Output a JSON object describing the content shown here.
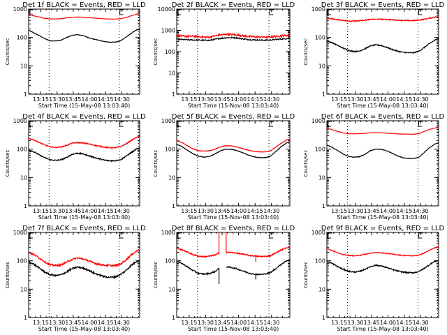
{
  "figure": {
    "background": "#ffffff",
    "series_colors": {
      "events": "#000000",
      "lld": "#ff0000"
    }
  },
  "chart_data": [
    {
      "type": "line",
      "panel": 1,
      "title": "Det 1f BLACK = Events, RED = LLD",
      "xlabel": "Start Time (15-May-08 13:03:40)",
      "ylabel": "Counts/sec",
      "xlim_min": [
        0,
        103
      ],
      "yscale": "log",
      "ylim": [
        1,
        1000
      ],
      "xticks": [
        "13:15",
        "13:30",
        "13:45",
        "14:00",
        "14:15",
        "14:30"
      ],
      "yticks": [
        "1",
        "10",
        "100",
        "1000"
      ],
      "vlines_min": [
        19,
        84,
        102
      ],
      "markers": [
        {
          "label": "E",
          "x_min": 0
        },
        {
          "label": "E",
          "x_min": 84
        }
      ],
      "x_min": [
        0,
        5,
        10,
        15,
        20,
        25,
        30,
        35,
        40,
        45,
        50,
        55,
        60,
        65,
        70,
        75,
        80,
        85,
        90,
        95,
        100,
        103
      ],
      "series": [
        {
          "name": "Events",
          "noise": 0.02,
          "values": [
            180,
            145,
            115,
            90,
            77,
            75,
            80,
            98,
            118,
            125,
            118,
            100,
            88,
            80,
            72,
            68,
            68,
            75,
            100,
            140,
            185,
            190
          ]
        },
        {
          "name": "LLD",
          "noise": 0.01,
          "values": [
            650,
            580,
            520,
            470,
            450,
            450,
            460,
            490,
            510,
            525,
            515,
            500,
            485,
            470,
            455,
            445,
            445,
            455,
            500,
            580,
            660,
            690
          ]
        }
      ]
    },
    {
      "type": "line",
      "panel": 2,
      "title": "Det 2f BLACK = Events, RED = LLD",
      "xlabel": "Start Time (15-Nov-08 13:03:40)",
      "ylabel": "Counts/sec",
      "xlim_min": [
        0,
        103
      ],
      "yscale": "log",
      "ylim": [
        1,
        10000
      ],
      "xticks": [
        "13:15",
        "13:30",
        "13:45",
        "14:00",
        "14:15",
        "14:30"
      ],
      "yticks": [
        "1",
        "10",
        "100",
        "1000",
        "10000"
      ],
      "vlines_min": [
        19,
        84,
        102
      ],
      "markers": [
        {
          "label": "E",
          "x_min": 0
        },
        {
          "label": "E",
          "x_min": 84
        }
      ],
      "x_min": [
        0,
        5,
        10,
        15,
        20,
        25,
        30,
        35,
        40,
        45,
        50,
        55,
        60,
        65,
        70,
        75,
        80,
        85,
        90,
        95,
        100,
        103
      ],
      "series": [
        {
          "name": "Events",
          "noise": 0.06,
          "values": [
            380,
            370,
            360,
            355,
            350,
            340,
            340,
            380,
            420,
            450,
            460,
            440,
            400,
            370,
            360,
            350,
            345,
            350,
            370,
            390,
            410,
            420
          ]
        },
        {
          "name": "LLD",
          "noise": 0.1,
          "values": [
            560,
            540,
            520,
            530,
            500,
            480,
            480,
            560,
            620,
            650,
            640,
            600,
            560,
            520,
            500,
            490,
            480,
            490,
            520,
            550,
            580,
            590
          ]
        }
      ]
    },
    {
      "type": "line",
      "panel": 3,
      "title": "Det 3f BLACK = Events, RED = LLD",
      "xlabel": "Start Time (15-May-08 13:03:40)",
      "ylabel": "Counts/sec",
      "xlim_min": [
        0,
        103
      ],
      "yscale": "log",
      "ylim": [
        1,
        1000
      ],
      "xticks": [
        "13:15",
        "13:30",
        "13:45",
        "14:00",
        "14:15",
        "14:30"
      ],
      "yticks": [
        "1",
        "10",
        "100",
        "1000"
      ],
      "vlines_min": [
        19,
        84,
        102
      ],
      "markers": [
        {
          "label": "E",
          "x_min": 0
        },
        {
          "label": "E",
          "x_min": 84
        }
      ],
      "x_min": [
        0,
        5,
        10,
        15,
        20,
        25,
        30,
        35,
        40,
        45,
        50,
        55,
        60,
        65,
        70,
        75,
        80,
        85,
        90,
        95,
        100,
        103
      ],
      "series": [
        {
          "name": "Events",
          "noise": 0.04,
          "values": [
            75,
            65,
            52,
            42,
            35,
            32,
            33,
            40,
            50,
            55,
            52,
            45,
            38,
            33,
            30,
            29,
            29,
            33,
            45,
            62,
            82,
            88
          ]
        },
        {
          "name": "LLD",
          "noise": 0.04,
          "values": [
            480,
            450,
            420,
            400,
            380,
            380,
            390,
            410,
            430,
            440,
            440,
            430,
            420,
            410,
            400,
            395,
            395,
            410,
            440,
            480,
            520,
            540
          ]
        }
      ]
    },
    {
      "type": "line",
      "panel": 4,
      "title": "Det 4f BLACK = Events, RED = LLD",
      "xlabel": "Start Time (15-May-08 13:03:40)",
      "ylabel": "Counts/sec",
      "xlim_min": [
        0,
        103
      ],
      "yscale": "log",
      "ylim": [
        1,
        1000
      ],
      "xticks": [
        "13:15",
        "13:30",
        "13:45",
        "14:00",
        "14:15",
        "14:30"
      ],
      "yticks": [
        "1",
        "10",
        "100",
        "1000"
      ],
      "vlines_min": [
        19,
        84,
        102
      ],
      "markers": [
        {
          "label": "E",
          "x_min": 0
        },
        {
          "label": "E",
          "x_min": 84
        }
      ],
      "x_min": [
        0,
        5,
        10,
        15,
        20,
        25,
        30,
        35,
        40,
        45,
        50,
        55,
        60,
        65,
        70,
        75,
        80,
        85,
        90,
        95,
        100,
        103
      ],
      "series": [
        {
          "name": "Events",
          "noise": 0.05,
          "values": [
            95,
            80,
            62,
            50,
            42,
            40,
            42,
            50,
            65,
            72,
            68,
            60,
            52,
            46,
            41,
            39,
            39,
            42,
            55,
            75,
            100,
            110
          ]
        },
        {
          "name": "LLD",
          "noise": 0.04,
          "values": [
            240,
            210,
            170,
            140,
            120,
            115,
            118,
            135,
            160,
            170,
            165,
            155,
            140,
            128,
            118,
            112,
            112,
            120,
            150,
            200,
            260,
            280
          ]
        }
      ]
    },
    {
      "type": "line",
      "panel": 5,
      "title": "Det 5f BLACK = Events, RED = LLD",
      "xlabel": "Start Time (15-Nov-08 13:03:40)",
      "ylabel": "Counts/sec",
      "xlim_min": [
        0,
        103
      ],
      "yscale": "log",
      "ylim": [
        1,
        1000
      ],
      "xticks": [
        "13:15",
        "13:30",
        "13:45",
        "14:00",
        "14:15",
        "14:30"
      ],
      "yticks": [
        "1",
        "10",
        "100",
        "1000"
      ],
      "vlines_min": [
        19,
        84,
        102
      ],
      "markers": [
        {
          "label": "E",
          "x_min": 0
        },
        {
          "label": "E",
          "x_min": 84
        }
      ],
      "x_min": [
        0,
        5,
        10,
        15,
        20,
        25,
        30,
        35,
        40,
        45,
        50,
        55,
        60,
        65,
        70,
        75,
        80,
        85,
        90,
        95,
        100,
        103
      ],
      "series": [
        {
          "name": "Events",
          "noise": 0.02,
          "values": [
            150,
            120,
            90,
            68,
            56,
            52,
            55,
            68,
            88,
            100,
            98,
            88,
            75,
            62,
            54,
            50,
            50,
            55,
            80,
            120,
            165,
            180
          ]
        },
        {
          "name": "LLD",
          "noise": 0.02,
          "values": [
            200,
            170,
            130,
            100,
            88,
            85,
            88,
            100,
            120,
            132,
            130,
            118,
            105,
            92,
            84,
            80,
            80,
            86,
            115,
            160,
            210,
            225
          ]
        }
      ]
    },
    {
      "type": "line",
      "panel": 6,
      "title": "Det 6f BLACK = Events, RED = LLD",
      "xlabel": "Start Time (15-May-08 13:03:40)",
      "ylabel": "Counts/sec",
      "xlim_min": [
        0,
        103
      ],
      "yscale": "log",
      "ylim": [
        1,
        1000
      ],
      "xticks": [
        "13:15",
        "13:30",
        "13:45",
        "14:00",
        "14:15",
        "14:30"
      ],
      "yticks": [
        "1",
        "10",
        "100",
        "1000"
      ],
      "vlines_min": [
        19,
        84,
        102
      ],
      "markers": [
        {
          "label": "E",
          "x_min": 0
        },
        {
          "label": "E",
          "x_min": 84
        }
      ],
      "x_min": [
        0,
        5,
        10,
        15,
        20,
        25,
        30,
        35,
        40,
        45,
        50,
        55,
        60,
        65,
        70,
        75,
        80,
        85,
        90,
        95,
        100,
        103
      ],
      "series": [
        {
          "name": "Events",
          "noise": 0.02,
          "values": [
            140,
            115,
            88,
            68,
            55,
            52,
            54,
            65,
            88,
            100,
            98,
            88,
            72,
            58,
            50,
            47,
            47,
            52,
            78,
            115,
            155,
            165
          ]
        },
        {
          "name": "LLD",
          "noise": 0.01,
          "values": [
            560,
            480,
            420,
            370,
            350,
            345,
            350,
            360,
            375,
            380,
            375,
            365,
            355,
            345,
            340,
            335,
            335,
            350,
            430,
            500,
            560,
            580
          ]
        }
      ]
    },
    {
      "type": "line",
      "panel": 7,
      "title": "Det 7f BLACK = Events, RED = LLD",
      "xlabel": "Start Time (15-May-08 13:03:40)",
      "ylabel": "Counts/sec",
      "xlim_min": [
        0,
        103
      ],
      "yscale": "log",
      "ylim": [
        1,
        1000
      ],
      "xticks": [
        "13:15",
        "13:30",
        "13:45",
        "14:00",
        "14:15",
        "14:30"
      ],
      "yticks": [
        "1",
        "10",
        "100",
        "1000"
      ],
      "vlines_min": [
        19,
        84,
        102
      ],
      "markers": [
        {
          "label": "E",
          "x_min": 0
        },
        {
          "label": "E",
          "x_min": 84
        }
      ],
      "x_min": [
        0,
        5,
        10,
        15,
        20,
        25,
        30,
        35,
        40,
        45,
        50,
        55,
        60,
        65,
        70,
        75,
        80,
        85,
        90,
        95,
        100,
        103
      ],
      "series": [
        {
          "name": "Events",
          "noise": 0.07,
          "values": [
            95,
            75,
            55,
            40,
            32,
            30,
            32,
            40,
            52,
            60,
            56,
            48,
            38,
            32,
            28,
            26,
            27,
            32,
            45,
            68,
            95,
            100
          ]
        },
        {
          "name": "LLD",
          "noise": 0.07,
          "values": [
            200,
            165,
            125,
            92,
            72,
            68,
            72,
            88,
            110,
            125,
            118,
            102,
            85,
            75,
            70,
            68,
            68,
            75,
            105,
            160,
            220,
            240
          ]
        }
      ]
    },
    {
      "type": "line",
      "panel": 8,
      "title": "Det 8f BLACK = Events, RED = LLD",
      "xlabel": "Start Time (15-Nov-08 13:03:40)",
      "ylabel": "Counts/sec",
      "xlim_min": [
        0,
        103
      ],
      "yscale": "log",
      "ylim": [
        1,
        1000
      ],
      "xticks": [
        "13:15",
        "13:30",
        "13:45",
        "14:00",
        "14:15",
        "14:30"
      ],
      "yticks": [
        "1",
        "10",
        "100",
        "1000"
      ],
      "vlines_min": [
        19,
        84,
        102
      ],
      "markers": [
        {
          "label": "E",
          "x_min": 0
        },
        {
          "label": "E",
          "x_min": 84
        }
      ],
      "gap_min": [
        39,
        45
      ],
      "spikes": [
        {
          "series": "LLD",
          "x_min": 38.5,
          "value": 1000
        },
        {
          "series": "LLD",
          "x_min": 45,
          "value": 1000
        },
        {
          "series": "Events",
          "x_min": 38.5,
          "value": 15
        },
        {
          "series": "Events",
          "x_min": 72,
          "value": 22
        },
        {
          "series": "LLD",
          "x_min": 72,
          "value": 90
        }
      ],
      "x_min": [
        0,
        5,
        10,
        15,
        20,
        25,
        30,
        35,
        38,
        45,
        50,
        55,
        60,
        65,
        70,
        75,
        80,
        85,
        90,
        95,
        100,
        103
      ],
      "series": [
        {
          "name": "Events",
          "noise": 0.05,
          "values": [
            95,
            80,
            60,
            45,
            36,
            34,
            36,
            42,
            52,
            62,
            58,
            52,
            44,
            38,
            34,
            33,
            34,
            38,
            52,
            75,
            100,
            110
          ]
        },
        {
          "name": "LLD",
          "noise": 0.05,
          "values": [
            280,
            240,
            200,
            165,
            145,
            140,
            145,
            160,
            180,
            200,
            195,
            185,
            170,
            158,
            148,
            142,
            142,
            150,
            185,
            240,
            290,
            300
          ]
        }
      ]
    },
    {
      "type": "line",
      "panel": 9,
      "title": "Det 9f BLACK = Events, RED = LLD",
      "xlabel": "Start Time (15-May-08 13:03:40)",
      "ylabel": "Counts/sec",
      "xlim_min": [
        0,
        103
      ],
      "yscale": "log",
      "ylim": [
        1,
        1000
      ],
      "xticks": [
        "13:15",
        "13:30",
        "13:45",
        "14:00",
        "14:15",
        "14:30"
      ],
      "yticks": [
        "1",
        "10",
        "100",
        "1000"
      ],
      "vlines_min": [
        19,
        84,
        102
      ],
      "markers": [
        {
          "label": "E",
          "x_min": 0
        },
        {
          "label": "E",
          "x_min": 84
        }
      ],
      "x_min": [
        0,
        5,
        10,
        15,
        20,
        25,
        30,
        35,
        40,
        45,
        50,
        55,
        60,
        65,
        70,
        75,
        80,
        85,
        90,
        95,
        100,
        103
      ],
      "series": [
        {
          "name": "Events",
          "noise": 0.05,
          "values": [
            95,
            80,
            62,
            50,
            43,
            40,
            42,
            50,
            62,
            70,
            66,
            58,
            50,
            44,
            40,
            38,
            38,
            42,
            55,
            75,
            98,
            102
          ]
        },
        {
          "name": "LLD",
          "noise": 0.03,
          "values": [
            270,
            230,
            190,
            165,
            155,
            150,
            155,
            170,
            185,
            195,
            192,
            182,
            172,
            162,
            155,
            150,
            150,
            158,
            190,
            240,
            290,
            300
          ]
        }
      ]
    }
  ]
}
